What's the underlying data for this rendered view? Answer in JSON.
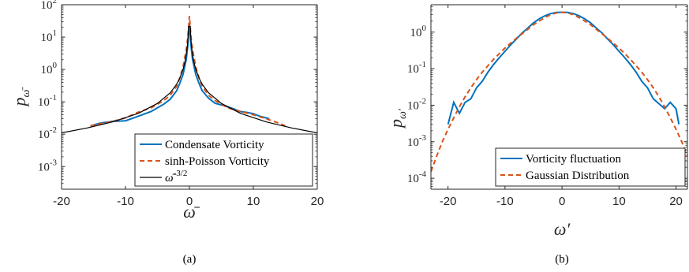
{
  "chart_data": [
    {
      "type": "line",
      "panel_caption": "(a)",
      "xlabel": "ω̄",
      "ylabel": "p_ω̄",
      "xlim": [
        -20,
        20
      ],
      "ylim_log10": [
        -3.7,
        2
      ],
      "yscale": "log",
      "xticks": [
        "-20",
        "-10",
        "0",
        "10",
        "20"
      ],
      "yticks": [
        {
          "base": "10",
          "exp": "2",
          "log": 2
        },
        {
          "base": "10",
          "exp": "1",
          "log": 1
        },
        {
          "base": "10",
          "exp": "0",
          "log": 0
        },
        {
          "base": "10",
          "exp": "-1",
          "log": -1
        },
        {
          "base": "10",
          "exp": "-2",
          "log": -2
        },
        {
          "base": "10",
          "exp": "-3",
          "log": -3
        }
      ],
      "legend": [
        "Condensate Vorticity",
        "sinh-Poisson Vorticity",
        "ω̄^{-3/2}"
      ],
      "legend_position": "bottom-right",
      "series": [
        {
          "name": "Condensate Vorticity",
          "color": "#0072BD",
          "style": "solid",
          "x": [
            -15.5,
            -14,
            -12,
            -10,
            -8,
            -6,
            -4,
            -3,
            -2,
            -1.5,
            -1,
            -0.5,
            -0.25,
            0,
            0.25,
            0.5,
            1,
            1.5,
            2,
            3,
            4,
            5,
            6,
            7,
            8,
            9,
            10,
            11,
            12.5
          ],
          "y": [
            0.018,
            0.022,
            0.025,
            0.026,
            0.036,
            0.05,
            0.085,
            0.12,
            0.22,
            0.37,
            0.7,
            2.0,
            5.5,
            28,
            5.5,
            2.0,
            0.7,
            0.37,
            0.22,
            0.13,
            0.09,
            0.08,
            0.07,
            0.06,
            0.05,
            0.047,
            0.043,
            0.036,
            0.03
          ]
        },
        {
          "name": "sinh-Poisson Vorticity",
          "color": "#D95319",
          "style": "dashed",
          "x": [
            -15.5,
            -14,
            -12,
            -10,
            -8,
            -6,
            -4,
            -3,
            -2,
            -1.5,
            -1,
            -0.5,
            -0.25,
            0,
            0.25,
            0.5,
            1,
            1.5,
            2,
            3,
            4,
            6,
            8,
            10,
            12,
            14,
            15
          ],
          "y": [
            0.018,
            0.021,
            0.025,
            0.032,
            0.048,
            0.065,
            0.11,
            0.16,
            0.3,
            0.55,
            1.2,
            4.0,
            10,
            45,
            10,
            4.0,
            1.2,
            0.55,
            0.3,
            0.16,
            0.11,
            0.065,
            0.05,
            0.04,
            0.03,
            0.022,
            0.018
          ]
        },
        {
          "name": "ω̄^{-3/2}",
          "color": "#000000",
          "style": "solid",
          "x": [
            -20,
            -16,
            -12,
            -8,
            -5,
            -3,
            -2,
            -1.5,
            -1,
            -0.7,
            -0.5,
            -0.35,
            -0.25,
            -0.18,
            -0.13,
            0,
            0.13,
            0.18,
            0.25,
            0.35,
            0.5,
            0.7,
            1,
            1.5,
            2,
            3,
            5,
            8,
            12,
            16,
            20
          ],
          "y": [
            0.011,
            0.0156,
            0.024,
            0.044,
            0.089,
            0.19,
            0.35,
            0.54,
            1.0,
            1.71,
            2.83,
            4.83,
            8.0,
            13.1,
            21.3,
            21.3,
            21.3,
            13.1,
            8.0,
            4.83,
            2.83,
            1.71,
            1.0,
            0.54,
            0.35,
            0.19,
            0.089,
            0.044,
            0.024,
            0.0156,
            0.011
          ]
        }
      ]
    },
    {
      "type": "line",
      "panel_caption": "(b)",
      "xlabel": "ω′",
      "ylabel": "p_ω′",
      "xlim": [
        -23,
        22
      ],
      "ylim_log10": [
        -4.3,
        0.75
      ],
      "yscale": "log",
      "xticks": [
        "-20",
        "-10",
        "0",
        "10",
        "20"
      ],
      "yticks": [
        {
          "base": "10",
          "exp": "0",
          "log": 0
        },
        {
          "base": "10",
          "exp": "-1",
          "log": -1
        },
        {
          "base": "10",
          "exp": "-2",
          "log": -2
        },
        {
          "base": "10",
          "exp": "-3",
          "log": -3
        },
        {
          "base": "10",
          "exp": "-4",
          "log": -4
        }
      ],
      "legend": [
        "Vorticity fluctuation",
        "Gaussian Distribution"
      ],
      "legend_position": "bottom-right",
      "series": [
        {
          "name": "Vorticity fluctuation",
          "color": "#0072BD",
          "style": "solid",
          "x": [
            -20,
            -19,
            -18,
            -17,
            -16,
            -15,
            -14,
            -13,
            -12,
            -11,
            -10,
            -9,
            -8,
            -7,
            -6,
            -5,
            -4,
            -3,
            -2,
            -1,
            0,
            1,
            2,
            3,
            4,
            5,
            6,
            7,
            8,
            9,
            10,
            11,
            12,
            13,
            14,
            15,
            16,
            17,
            18,
            19,
            20,
            20.5
          ],
          "y": [
            0.003,
            0.012,
            0.006,
            0.012,
            0.015,
            0.03,
            0.045,
            0.08,
            0.13,
            0.2,
            0.3,
            0.45,
            0.65,
            0.95,
            1.3,
            1.8,
            2.3,
            2.8,
            3.2,
            3.45,
            3.5,
            3.45,
            3.2,
            2.8,
            2.3,
            1.8,
            1.3,
            0.95,
            0.65,
            0.45,
            0.3,
            0.2,
            0.13,
            0.08,
            0.045,
            0.03,
            0.015,
            0.011,
            0.008,
            0.012,
            0.008,
            0.003
          ]
        },
        {
          "name": "Gaussian Distribution",
          "color": "#D95319",
          "style": "dashed",
          "x": [
            -23,
            -22,
            -21,
            -20,
            -19,
            -18,
            -17,
            -16,
            -15,
            -14,
            -13,
            -12,
            -11,
            -10,
            -9,
            -8,
            -7,
            -6,
            -5,
            -4,
            -3,
            -2,
            -1,
            0,
            1,
            2,
            3,
            4,
            5,
            6,
            7,
            8,
            9,
            10,
            11,
            12,
            13,
            14,
            15,
            16,
            17,
            18,
            19,
            20,
            21,
            22
          ],
          "y": [
            0.00015,
            0.0004,
            0.001,
            0.0022,
            0.0045,
            0.009,
            0.017,
            0.03,
            0.05,
            0.08,
            0.12,
            0.18,
            0.26,
            0.37,
            0.5,
            0.68,
            0.9,
            1.2,
            1.6,
            2.0,
            2.5,
            3.0,
            3.35,
            3.5,
            3.35,
            3.0,
            2.5,
            2.0,
            1.6,
            1.2,
            0.9,
            0.68,
            0.5,
            0.37,
            0.26,
            0.18,
            0.12,
            0.08,
            0.05,
            0.03,
            0.017,
            0.009,
            0.0045,
            0.0022,
            0.001,
            0.0004
          ]
        }
      ]
    }
  ]
}
